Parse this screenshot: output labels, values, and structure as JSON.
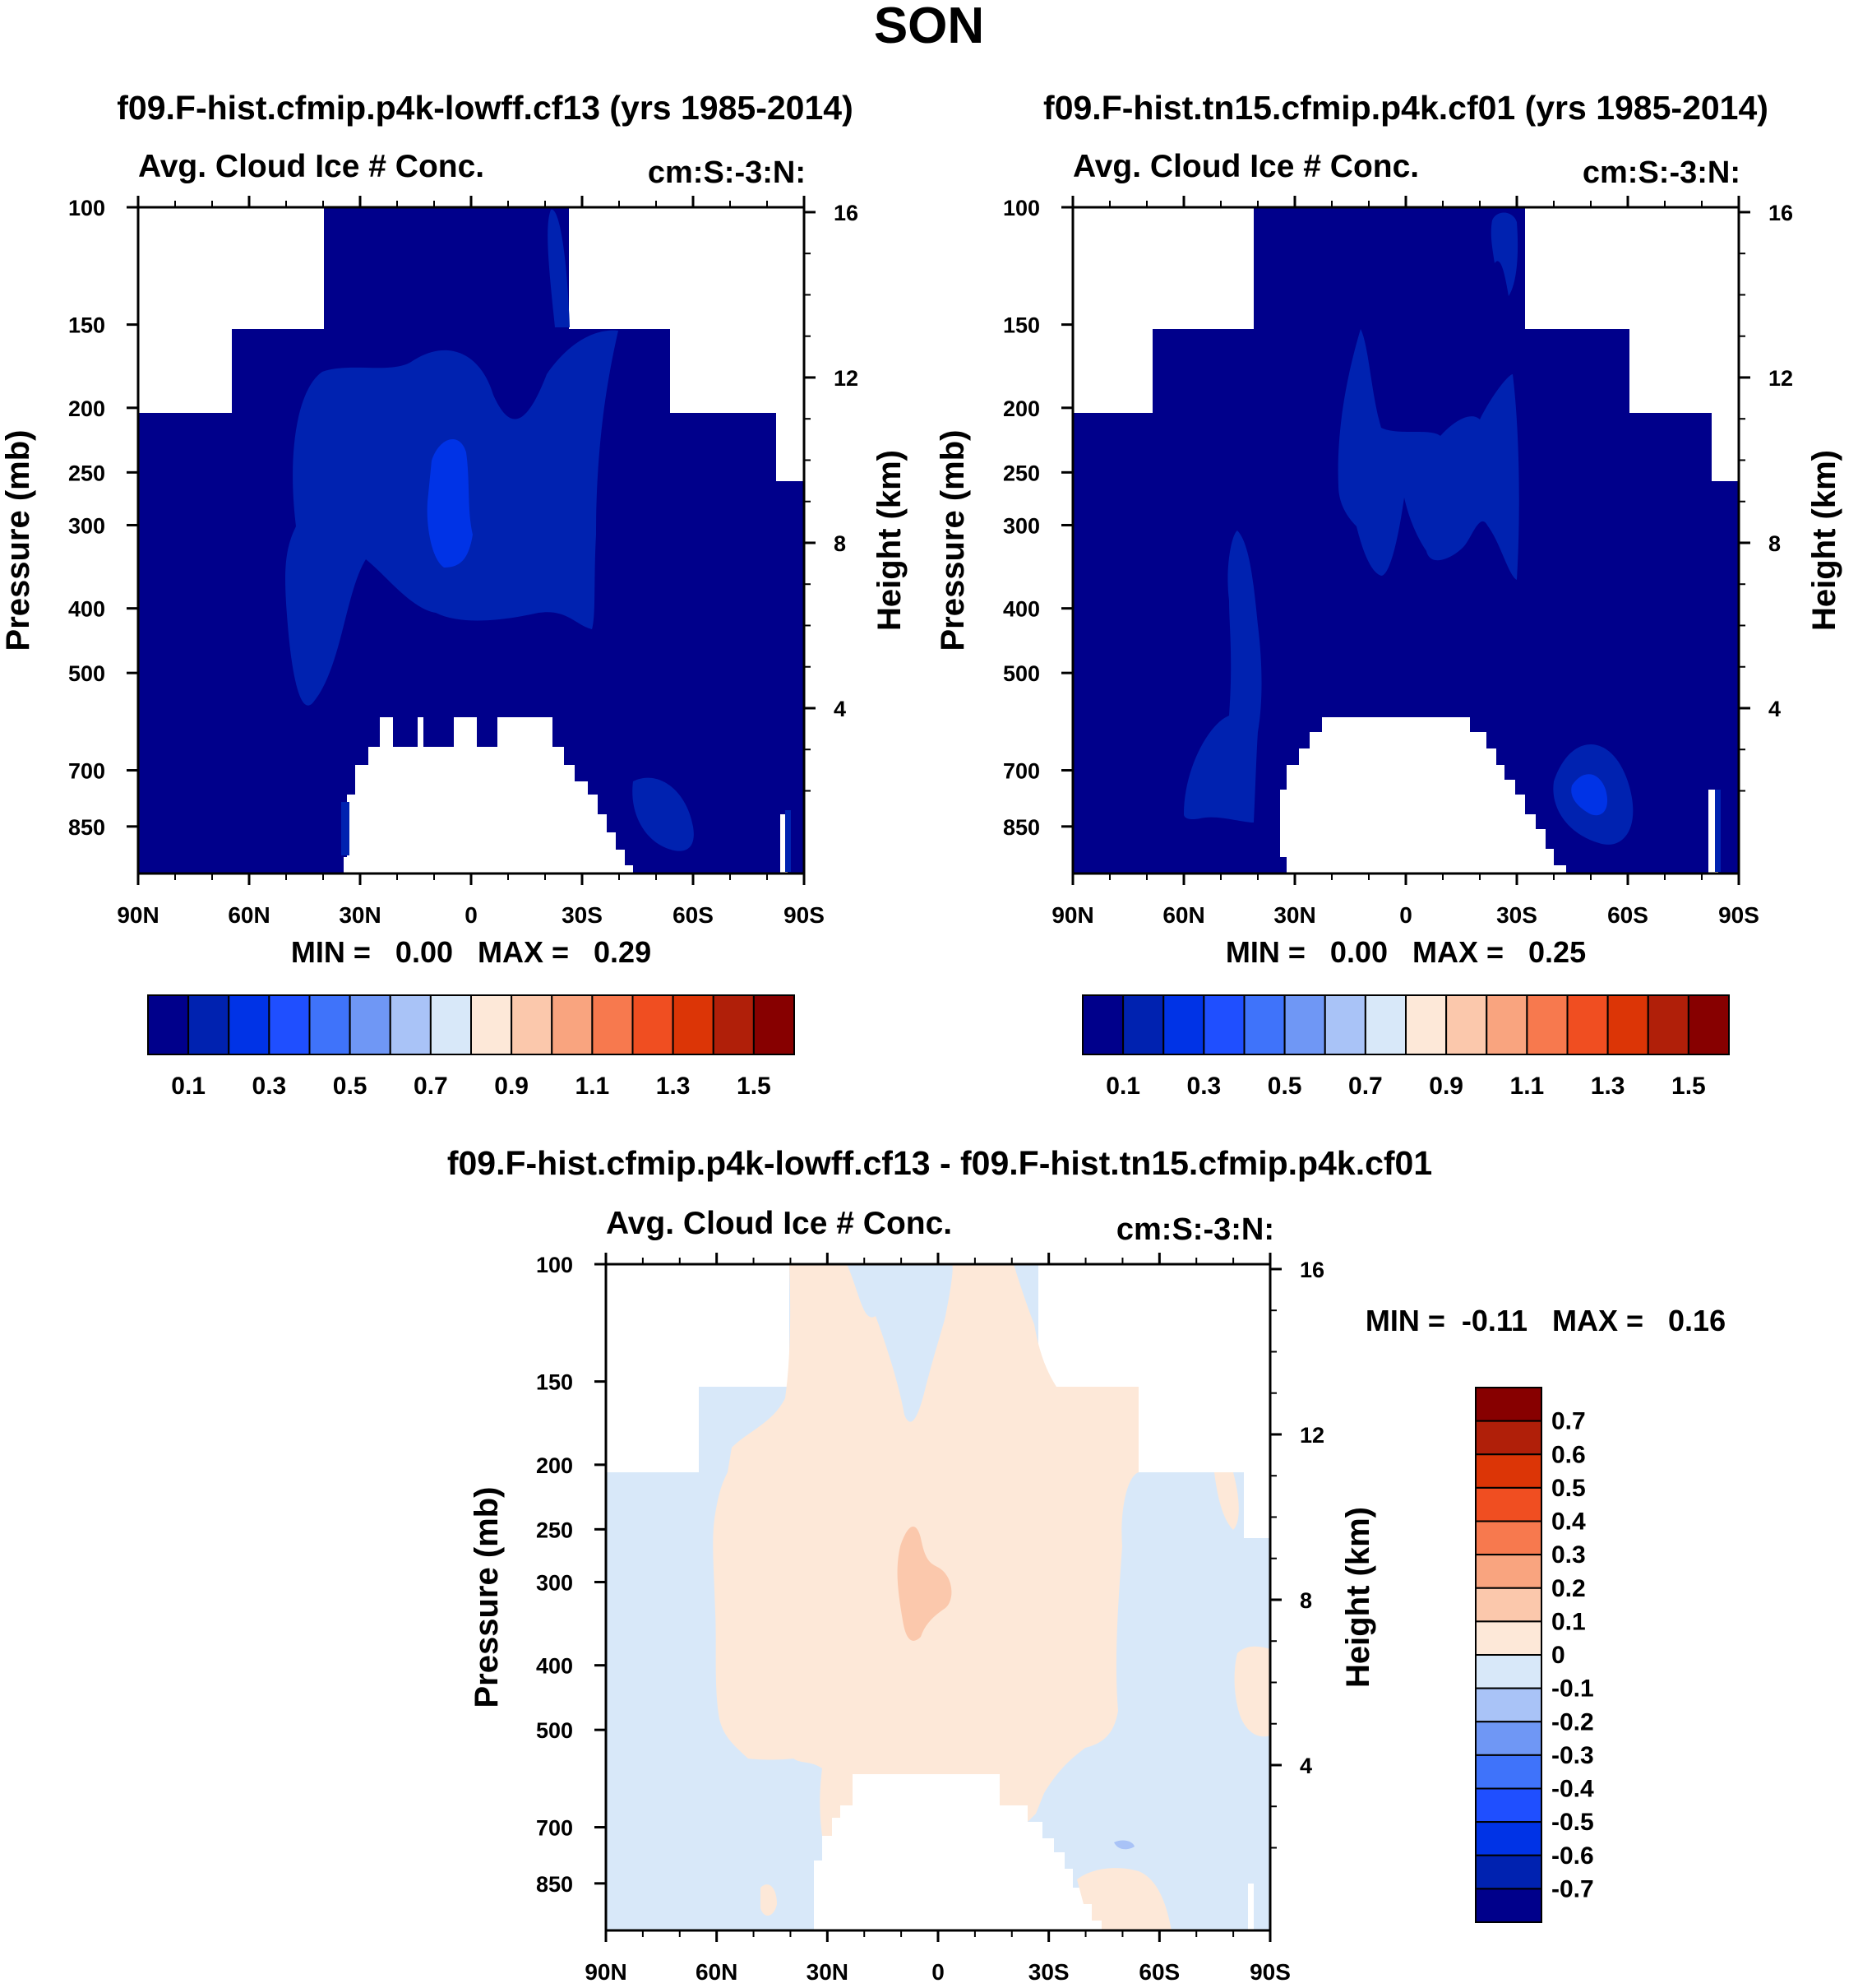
{
  "page_title": "SON",
  "colors": {
    "seq_scale": [
      "#00008b",
      "#0022b0",
      "#0033e6",
      "#1f4fff",
      "#3f73fa",
      "#6f97f5",
      "#a9c3f7",
      "#d8e8f9",
      "#fde8d8",
      "#fbc8ac",
      "#f9a47f",
      "#f7794e",
      "#f04e21",
      "#dc3506",
      "#b01f09",
      "#870000"
    ],
    "diff_scale": [
      "#00008b",
      "#0022b0",
      "#0033e6",
      "#1f4fff",
      "#3f73fa",
      "#6f97f5",
      "#a9c3f7",
      "#d8e8f9",
      "#fde8d8",
      "#fbc8ac",
      "#f9a47f",
      "#f7794e",
      "#f04e21",
      "#dc3506",
      "#b01f09",
      "#870000"
    ]
  },
  "panel_left": {
    "case_title": "f09.F-hist.cfmip.p4k-lowff.cf13 (yrs 1985-2014)",
    "plot_title": "Avg. Cloud Ice # Conc.",
    "units": "cm:S:-3:N:",
    "ylabel": "Pressure (mb)",
    "ylabel_right": "Height (km)",
    "min_max": "MIN =   0.00   MAX =   0.29"
  },
  "panel_right": {
    "case_title": "f09.F-hist.tn15.cfmip.p4k.cf01 (yrs 1985-2014)",
    "plot_title": "Avg. Cloud Ice # Conc.",
    "units": "cm:S:-3:N:",
    "ylabel": "Pressure (mb)",
    "ylabel_right": "Height (km)",
    "min_max": "MIN =   0.00   MAX =   0.25"
  },
  "panel_diff": {
    "case_title": "f09.F-hist.cfmip.p4k-lowff.cf13 - f09.F-hist.tn15.cfmip.p4k.cf01",
    "plot_title": "Avg. Cloud Ice # Conc.",
    "units": "cm:S:-3:N:",
    "ylabel": "Pressure (mb)",
    "ylabel_right": "Height (km)",
    "min_max": "MIN =  -0.11   MAX =   0.16"
  },
  "chart_data": [
    {
      "type": "heatmap",
      "title": "f09.F-hist.cfmip.p4k-lowff.cf13 (yrs 1985-2014)",
      "subtitle": "Avg. Cloud Ice # Conc.",
      "units": "cm:S:-3:N:",
      "ylabel": "Pressure (mb)",
      "ylabel_right": "Height (km)",
      "x_ticks": [
        "90N",
        "60N",
        "30N",
        "0",
        "30S",
        "60S",
        "90S"
      ],
      "y_ticks": [
        100,
        150,
        200,
        250,
        300,
        400,
        500,
        700,
        850
      ],
      "y_ticks_right": [
        16,
        12,
        8,
        4
      ],
      "ylim": [
        100,
        1000
      ],
      "y_scale": "log",
      "min": 0.0,
      "max": 0.29,
      "colorbar_labels": [
        "0.1",
        "0.3",
        "0.5",
        "0.7",
        "0.9",
        "1.1",
        "1.3",
        "1.5"
      ],
      "colorbar_orientation": "horizontal"
    },
    {
      "type": "heatmap",
      "title": "f09.F-hist.tn15.cfmip.p4k.cf01 (yrs 1985-2014)",
      "subtitle": "Avg. Cloud Ice # Conc.",
      "units": "cm:S:-3:N:",
      "ylabel": "Pressure (mb)",
      "ylabel_right": "Height (km)",
      "x_ticks": [
        "90N",
        "60N",
        "30N",
        "0",
        "30S",
        "60S",
        "90S"
      ],
      "y_ticks": [
        100,
        150,
        200,
        250,
        300,
        400,
        500,
        700,
        850
      ],
      "y_ticks_right": [
        16,
        12,
        8,
        4
      ],
      "ylim": [
        100,
        1000
      ],
      "y_scale": "log",
      "min": 0.0,
      "max": 0.25,
      "colorbar_labels": [
        "0.1",
        "0.3",
        "0.5",
        "0.7",
        "0.9",
        "1.1",
        "1.3",
        "1.5"
      ],
      "colorbar_orientation": "horizontal"
    },
    {
      "type": "heatmap",
      "title": "f09.F-hist.cfmip.p4k-lowff.cf13 - f09.F-hist.tn15.cfmip.p4k.cf01",
      "subtitle": "Avg. Cloud Ice # Conc.",
      "units": "cm:S:-3:N:",
      "ylabel": "Pressure (mb)",
      "ylabel_right": "Height (km)",
      "x_ticks": [
        "90N",
        "60N",
        "30N",
        "0",
        "30S",
        "60S",
        "90S"
      ],
      "y_ticks": [
        100,
        150,
        200,
        250,
        300,
        400,
        500,
        700,
        850
      ],
      "y_ticks_right": [
        16,
        12,
        8,
        4
      ],
      "ylim": [
        100,
        1000
      ],
      "y_scale": "log",
      "min": -0.11,
      "max": 0.16,
      "colorbar_labels": [
        "0.7",
        "0.6",
        "0.5",
        "0.4",
        "0.3",
        "0.2",
        "0.1",
        "0",
        "-0.1",
        "-0.2",
        "-0.3",
        "-0.4",
        "-0.5",
        "-0.6",
        "-0.7"
      ],
      "colorbar_orientation": "vertical"
    }
  ]
}
